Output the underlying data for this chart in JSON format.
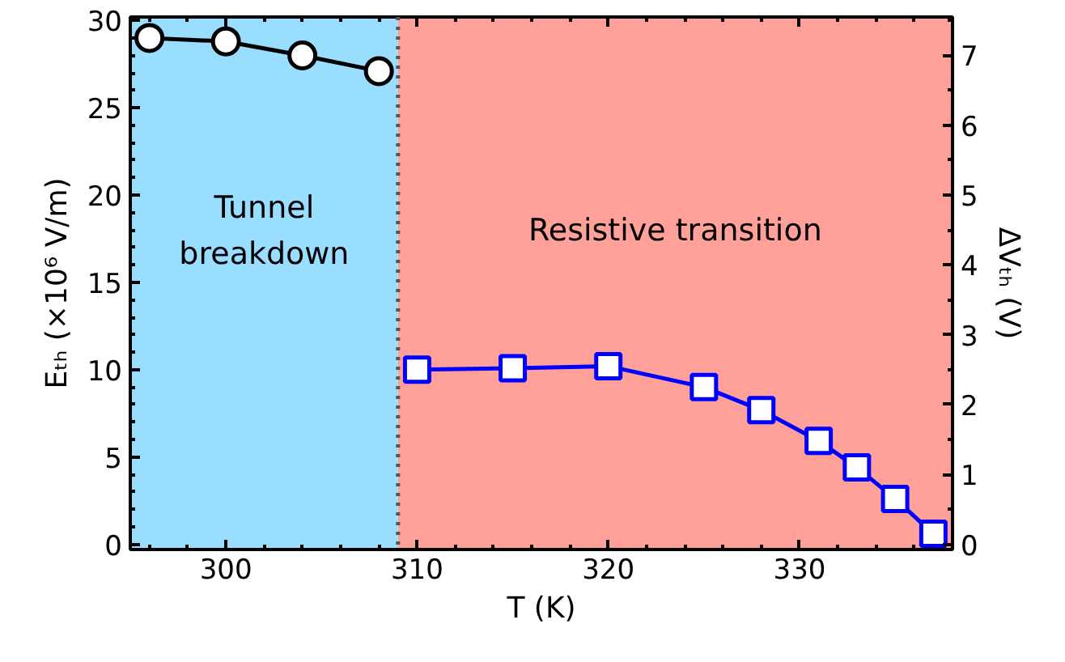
{
  "chart_data": {
    "type": "line",
    "xlabel": "T (K)",
    "ylabel": "Eₜₕ (×10⁶ V/m)",
    "y2label": "ΔVₜₕ (V)",
    "xlim": [
      295,
      338
    ],
    "xticks": [
      300,
      310,
      320,
      330
    ],
    "ylim": [
      -0.3,
      30.2
    ],
    "yticks": [
      0,
      5,
      10,
      15,
      20,
      25,
      30
    ],
    "y2lim": [
      -0.075,
      7.55
    ],
    "y2ticks": [
      0,
      1,
      2,
      3,
      4,
      5,
      6,
      7
    ],
    "series": [
      {
        "color": "#000000",
        "marker": "circle",
        "x": [
          296,
          300,
          304,
          308
        ],
        "values": [
          29.0,
          28.8,
          28.0,
          27.1
        ]
      },
      {
        "color": "#0000ff",
        "marker": "square",
        "axis": "y2",
        "x": [
          310,
          315,
          320,
          325,
          328,
          331,
          333,
          335,
          337
        ],
        "values": [
          2.5,
          2.52,
          2.55,
          2.25,
          1.92,
          1.48,
          1.1,
          0.65,
          0.15
        ]
      }
    ],
    "bands": [
      {
        "axis": "x",
        "from": 295,
        "to": 309,
        "label": "Tunnel\nbreakdown",
        "color": "#99ddff"
      },
      {
        "axis": "x",
        "from": 309,
        "to": 338,
        "label": "Resistive transition",
        "color": "#ffa099"
      }
    ],
    "ref_lines": [
      {
        "axis": "x",
        "value": 309,
        "color": "#555555",
        "line_style": "dotted"
      }
    ]
  }
}
